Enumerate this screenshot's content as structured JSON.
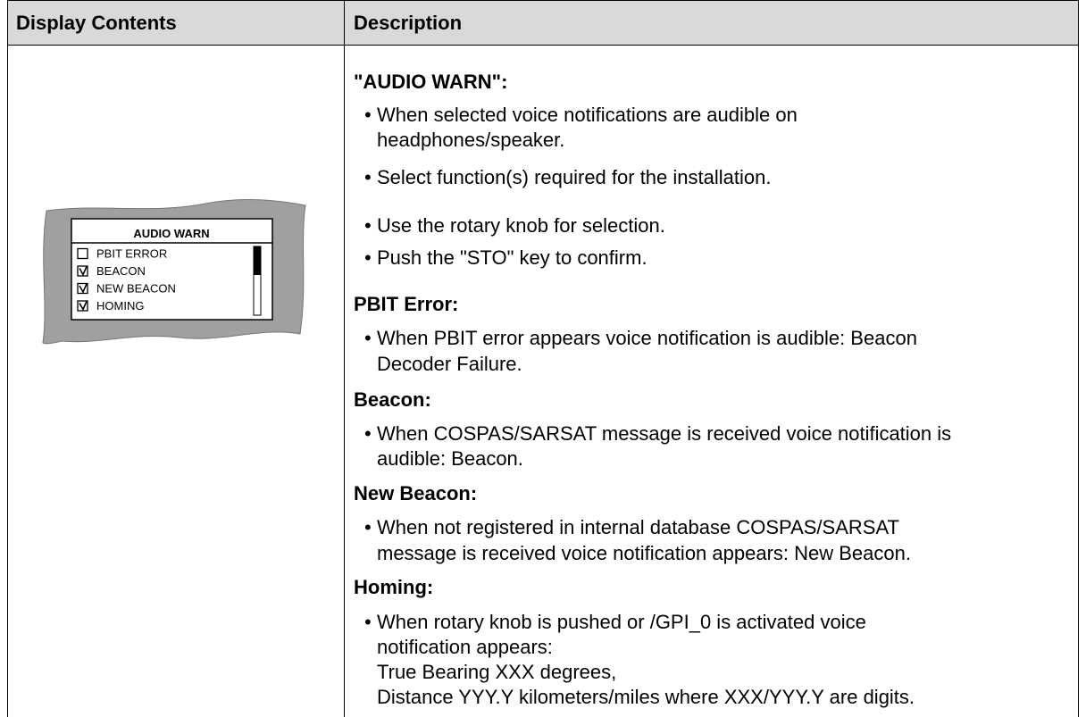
{
  "header": {
    "cells": [
      "Display Contents",
      "Description"
    ]
  },
  "display": {
    "title": "AUDIO WARN",
    "items": [
      {
        "label": "PBIT ERROR",
        "checked": false
      },
      {
        "label": "BEACON",
        "checked": true
      },
      {
        "label": "NEW BEACON",
        "checked": true
      },
      {
        "label": "HOMING",
        "checked": true
      }
    ]
  },
  "description": {
    "sections": [
      {
        "title": "\"AUDIO WARN\":",
        "bullets": [
          [
            "When selected voice notifications are audible on",
            "headphones/speaker."
          ],
          [
            "Select function(s) required for the installation."
          ],
          [
            "Use the rotary knob for selection."
          ],
          [
            "Push the \"STO\" key to confirm."
          ]
        ]
      },
      {
        "title": "PBIT Error:",
        "bullets": [
          [
            "When PBIT error appears voice notification is audible: Beacon",
            "Decoder Failure."
          ]
        ]
      },
      {
        "title": "Beacon:",
        "bullets": [
          [
            "When COSPAS/SARSAT message is received voice notification is",
            "audible: Beacon."
          ]
        ]
      },
      {
        "title": "New Beacon:",
        "bullets": [
          [
            "When not registered in internal database COSPAS/SARSAT",
            "message is received voice notification appears: New Beacon."
          ]
        ]
      },
      {
        "title": "Homing:",
        "bullets": [
          [
            "When rotary knob is pushed or /GPI_0 is activated voice",
            "notification appears:",
            "True Bearing XXX degrees,",
            "Distance YYY.Y kilometers/miles where XXX/YYY.Y are digits."
          ]
        ]
      }
    ]
  }
}
